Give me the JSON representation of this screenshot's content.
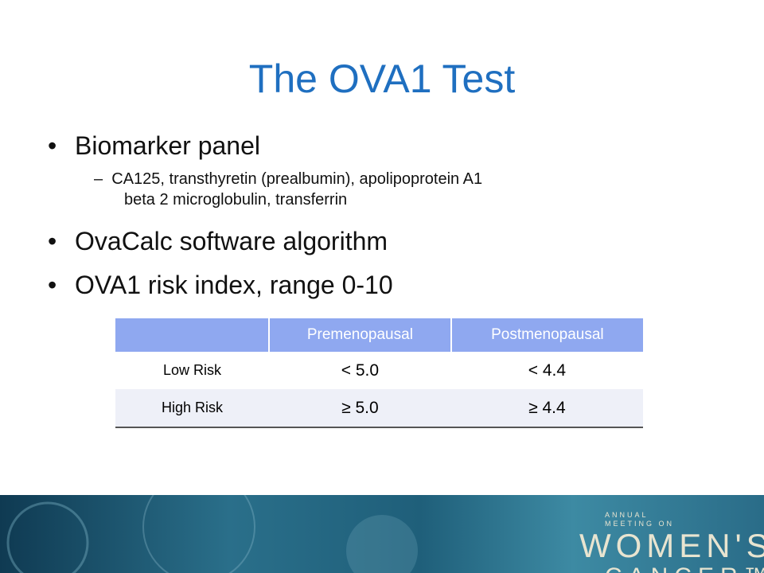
{
  "slide": {
    "title": "The OVA1 Test",
    "bullets": [
      {
        "text": "Biomarker panel",
        "sub": [
          "CA125, transthyretin (prealbumin), apolipoprotein A1",
          "beta 2 microglobulin, transferrin"
        ]
      },
      {
        "text": "OvaCalc software algorithm"
      },
      {
        "text": "OVA1 risk index, range 0-10"
      }
    ],
    "table": {
      "header": [
        "Premenopausal",
        "Postmenopausal"
      ],
      "rows": [
        [
          "Low Risk",
          "< 5.0",
          "< 4.4"
        ],
        [
          "High Risk",
          "≥ 5.0",
          "≥ 4.4"
        ]
      ]
    },
    "logo": {
      "line1": "ANNUAL",
      "line2": "MEETING ON",
      "line3": "WOMEN'S",
      "line4": "CANCER™"
    }
  }
}
